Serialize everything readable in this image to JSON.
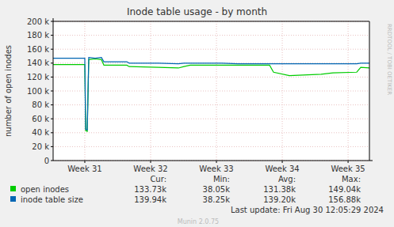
{
  "chart_data": {
    "type": "line",
    "title": "Inode table usage - by month",
    "y_label": "number of open inodes",
    "x": [
      0,
      3.37,
      3.46,
      3.63,
      3.79,
      4.47,
      5.14,
      5.4,
      7.84,
      8.09,
      11.21,
      13.32,
      13.91,
      14.59,
      17.96,
      19.65,
      23.02,
      23.44,
      25.13,
      28.5,
      29.76,
      32.29,
      32.72,
      33.64
    ],
    "xlim": [
      0,
      33.64
    ],
    "xticks": [
      {
        "value": 3.37,
        "label": "Week 31"
      },
      {
        "value": 10.37,
        "label": "Week 32"
      },
      {
        "value": 17.37,
        "label": "Week 33"
      },
      {
        "value": 24.37,
        "label": "Week 34"
      },
      {
        "value": 31.37,
        "label": "Week 35"
      }
    ],
    "ylim": [
      0,
      200000
    ],
    "yticks": [
      0,
      {
        "value": 20000,
        "label": "20 k"
      },
      {
        "value": 40000,
        "label": "40 k"
      },
      {
        "value": 60000,
        "label": "60 k"
      },
      {
        "value": 80000,
        "label": "80 k"
      },
      {
        "value": 100000,
        "label": "100 k"
      },
      {
        "value": 120000,
        "label": "120 k"
      },
      {
        "value": 140000,
        "label": "140 k"
      },
      {
        "value": 160000,
        "label": "160 k"
      },
      {
        "value": 180000,
        "label": "180 k"
      },
      {
        "value": 200000,
        "label": "200 k"
      }
    ],
    "grid": true,
    "stats_headers": [
      "Cur:",
      "Min:",
      "Avg:",
      "Max:"
    ],
    "series": [
      {
        "name": "open inodes",
        "color": "#00cc00",
        "values": [
          138000,
          138000,
          43000,
          42000,
          145000,
          146000,
          145000,
          137000,
          137000,
          135000,
          134000,
          133000,
          135000,
          137000,
          137000,
          137000,
          137000,
          127000,
          122000,
          124000,
          126000,
          127000,
          134000,
          133000
        ],
        "stats": [
          "133.73k",
          "38.05k",
          "131.38k",
          "149.04k"
        ]
      },
      {
        "name": "inode table size",
        "color": "#0066b3",
        "values": [
          147000,
          147000,
          45000,
          44000,
          148000,
          147000,
          148000,
          142000,
          142000,
          140000,
          140000,
          139000,
          140000,
          140000,
          140000,
          139000,
          139000,
          139000,
          139000,
          139000,
          139000,
          139000,
          140000,
          140000
        ],
        "stats": [
          "139.94k",
          "38.25k",
          "139.20k",
          "156.88k"
        ]
      }
    ],
    "footer": "Last update: Fri Aug 30 12:05:29 2024",
    "credit": "Munin 2.0.75",
    "side_text": "RRDTOOL / TOBI OETIKER"
  }
}
